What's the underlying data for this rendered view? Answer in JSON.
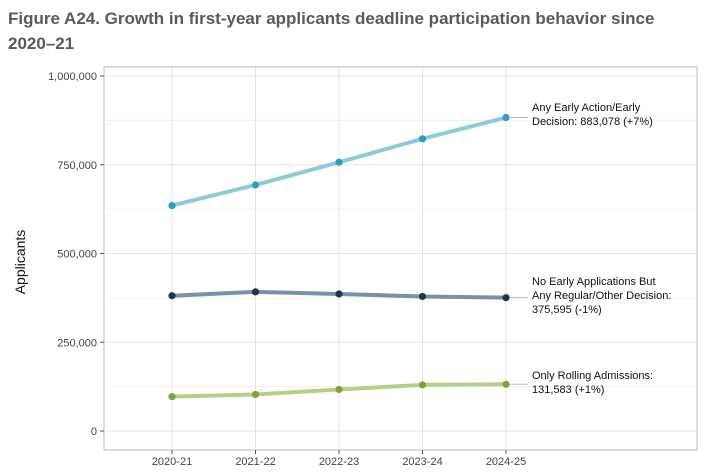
{
  "title": "Figure A24. Growth in first-year applicants deadline participation behavior since 2020–21",
  "chart_data": {
    "type": "line",
    "title": "Figure A24. Growth in first-year applicants deadline participation behavior since 2020–21",
    "xlabel": "",
    "ylabel": "Applicants",
    "categories": [
      "2020-21",
      "2021-22",
      "2022-23",
      "2023-24",
      "2024-25"
    ],
    "ylim": [
      0,
      1000000
    ],
    "yticks": [
      0,
      250000,
      500000,
      750000,
      1000000
    ],
    "ytick_labels": [
      "0",
      "250,000",
      "500,000",
      "750,000",
      "1,000,000"
    ],
    "grid": true,
    "legend": "none",
    "series": [
      {
        "values": [
          635000,
          693000,
          757000,
          823000,
          883078
        ],
        "line_color": "#8ccbdc",
        "point_color": "#2a9fc0",
        "label_lines": [
          "Any Early Action/Early",
          "Decision: 883,078 (+7%)"
        ]
      },
      {
        "values": [
          381000,
          392000,
          386000,
          379000,
          375595
        ],
        "line_color": "#7891a8",
        "point_color": "#1f3550",
        "label_lines": [
          "No Early Applications But",
          "Any Regular/Other Decision:",
          "375,595 (-1%)"
        ]
      },
      {
        "values": [
          97000,
          103000,
          117000,
          130000,
          131583
        ],
        "line_color": "#b5cf86",
        "point_color": "#7fa33a",
        "label_lines": [
          "Only Rolling Admissions:",
          "131,583 (+1%)"
        ]
      }
    ]
  }
}
